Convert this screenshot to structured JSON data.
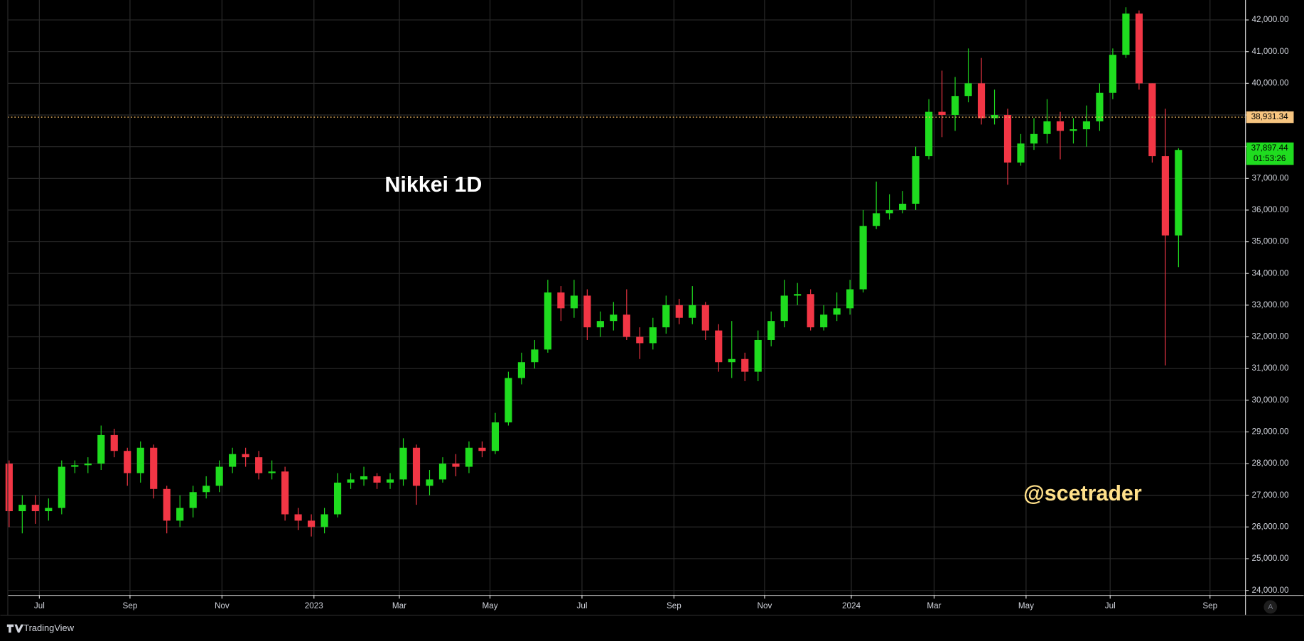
{
  "chart_data": {
    "type": "candlestick",
    "title": "Nikkei 1D",
    "annotation": "@scetrader",
    "up_color": "#1fdc1f",
    "down_color": "#f23645",
    "grid": true,
    "xlim": [
      -0.1,
      94.1
    ],
    "ylim": [
      23843,
      42629
    ],
    "xticks": [
      {
        "value": 2.3,
        "label": "Jul"
      },
      {
        "value": 9.2,
        "label": "Sep"
      },
      {
        "value": 16.2,
        "label": "Nov"
      },
      {
        "value": 23.2,
        "label": "2023"
      },
      {
        "value": 29.7,
        "label": "Mar"
      },
      {
        "value": 36.6,
        "label": "May"
      },
      {
        "value": 43.6,
        "label": "Jul"
      },
      {
        "value": 50.6,
        "label": "Sep"
      },
      {
        "value": 57.5,
        "label": "Nov"
      },
      {
        "value": 64.1,
        "label": "2024"
      },
      {
        "value": 70.4,
        "label": "Mar"
      },
      {
        "value": 77.4,
        "label": "May"
      },
      {
        "value": 83.8,
        "label": "Jul"
      },
      {
        "value": 91.4,
        "label": "Sep"
      }
    ],
    "yticks": [
      {
        "value": 24000,
        "label": "24,000.00"
      },
      {
        "value": 25000,
        "label": "25,000.00"
      },
      {
        "value": 26000,
        "label": "26,000.00"
      },
      {
        "value": 27000,
        "label": "27,000.00"
      },
      {
        "value": 28000,
        "label": "28,000.00"
      },
      {
        "value": 29000,
        "label": "29,000.00"
      },
      {
        "value": 30000,
        "label": "30,000.00"
      },
      {
        "value": 31000,
        "label": "31,000.00"
      },
      {
        "value": 32000,
        "label": "32,000.00"
      },
      {
        "value": 33000,
        "label": "33,000.00"
      },
      {
        "value": 34000,
        "label": "34,000.00"
      },
      {
        "value": 35000,
        "label": "35,000.00"
      },
      {
        "value": 36000,
        "label": "36,000.00"
      },
      {
        "value": 37000,
        "label": "37,000.00"
      },
      {
        "value": 38000,
        "label": "38,000.00"
      },
      {
        "value": 39000,
        "label": "39,000.00"
      },
      {
        "value": 40000,
        "label": "40,000.00"
      },
      {
        "value": 41000,
        "label": "41,000.00"
      },
      {
        "value": 42000,
        "label": "42,000.00"
      }
    ],
    "previous_close": {
      "value": 38931.34,
      "label": "38,931.34"
    },
    "last_price": {
      "value": 37897.44,
      "label": "37,897.44",
      "countdown": "01:53:26"
    },
    "candles": [
      [
        28000,
        28100,
        26000,
        26500
      ],
      [
        26500,
        27000,
        25800,
        26700
      ],
      [
        26700,
        27000,
        26100,
        26500
      ],
      [
        26500,
        26900,
        26200,
        26600
      ],
      [
        26600,
        28100,
        26400,
        27900
      ],
      [
        27900,
        28100,
        27700,
        27950
      ],
      [
        27950,
        28200,
        27700,
        28000
      ],
      [
        28000,
        29200,
        27800,
        28900
      ],
      [
        28900,
        29100,
        28200,
        28400
      ],
      [
        28400,
        28500,
        27300,
        27700
      ],
      [
        27700,
        28700,
        27400,
        28500
      ],
      [
        28500,
        28600,
        26900,
        27200
      ],
      [
        27200,
        27300,
        25800,
        26200
      ],
      [
        26200,
        27000,
        26000,
        26600
      ],
      [
        26600,
        27300,
        26300,
        27100
      ],
      [
        27100,
        27600,
        26900,
        27300
      ],
      [
        27300,
        28100,
        27100,
        27900
      ],
      [
        27900,
        28500,
        27700,
        28300
      ],
      [
        28300,
        28500,
        27900,
        28200
      ],
      [
        28200,
        28400,
        27500,
        27700
      ],
      [
        27700,
        28100,
        27500,
        27750
      ],
      [
        27750,
        27900,
        26200,
        26400
      ],
      [
        26400,
        26600,
        25900,
        26200
      ],
      [
        26200,
        26400,
        25700,
        26000
      ],
      [
        26000,
        26600,
        25800,
        26400
      ],
      [
        26400,
        27700,
        26300,
        27400
      ],
      [
        27400,
        27700,
        27200,
        27500
      ],
      [
        27500,
        27900,
        27300,
        27600
      ],
      [
        27600,
        27700,
        27200,
        27400
      ],
      [
        27400,
        27700,
        27200,
        27500
      ],
      [
        27500,
        28800,
        27300,
        28500
      ],
      [
        28500,
        28600,
        26700,
        27300
      ],
      [
        27300,
        27800,
        27000,
        27500
      ],
      [
        27500,
        28200,
        27400,
        28000
      ],
      [
        28000,
        28300,
        27600,
        27900
      ],
      [
        27900,
        28700,
        27700,
        28500
      ],
      [
        28500,
        28700,
        28200,
        28400
      ],
      [
        28400,
        29600,
        28300,
        29300
      ],
      [
        29300,
        30900,
        29200,
        30700
      ],
      [
        30700,
        31500,
        30500,
        31200
      ],
      [
        31200,
        31900,
        31000,
        31600
      ],
      [
        31600,
        33800,
        31500,
        33400
      ],
      [
        33400,
        33600,
        32500,
        32900
      ],
      [
        32900,
        33800,
        32600,
        33300
      ],
      [
        33300,
        33500,
        31900,
        32300
      ],
      [
        32300,
        32800,
        32000,
        32500
      ],
      [
        32500,
        33100,
        32200,
        32700
      ],
      [
        32700,
        33500,
        31900,
        32000
      ],
      [
        32000,
        32300,
        31300,
        31800
      ],
      [
        31800,
        32600,
        31600,
        32300
      ],
      [
        32300,
        33300,
        32100,
        33000
      ],
      [
        33000,
        33200,
        32400,
        32600
      ],
      [
        32600,
        33600,
        32400,
        33000
      ],
      [
        33000,
        33100,
        31900,
        32200
      ],
      [
        32200,
        32400,
        30900,
        31200
      ],
      [
        31200,
        32500,
        30700,
        31300
      ],
      [
        31300,
        31500,
        30600,
        30900
      ],
      [
        30900,
        32200,
        30600,
        31900
      ],
      [
        31900,
        32800,
        31700,
        32500
      ],
      [
        32500,
        33800,
        32300,
        33300
      ],
      [
        33300,
        33700,
        33000,
        33350
      ],
      [
        33350,
        33500,
        32200,
        32300
      ],
      [
        32300,
        33000,
        32200,
        32700
      ],
      [
        32700,
        33400,
        32500,
        32900
      ],
      [
        32900,
        33800,
        32700,
        33500
      ],
      [
        33500,
        36000,
        33400,
        35500
      ],
      [
        35500,
        36900,
        35400,
        35900
      ],
      [
        35900,
        36500,
        35700,
        36000
      ],
      [
        36000,
        36600,
        35900,
        36200
      ],
      [
        36200,
        38000,
        36000,
        37700
      ],
      [
        37700,
        39500,
        37600,
        39100
      ],
      [
        39100,
        40400,
        38300,
        39000
      ],
      [
        39000,
        40200,
        38500,
        39600
      ],
      [
        39600,
        41100,
        39400,
        40000
      ],
      [
        40000,
        40800,
        38700,
        38900
      ],
      [
        38900,
        39800,
        38700,
        39000
      ],
      [
        39000,
        39200,
        36800,
        37500
      ],
      [
        37500,
        38400,
        37400,
        38100
      ],
      [
        38100,
        38900,
        37900,
        38400
      ],
      [
        38400,
        39500,
        38100,
        38800
      ],
      [
        38800,
        39100,
        37600,
        38500
      ],
      [
        38500,
        38900,
        38100,
        38550
      ],
      [
        38550,
        39300,
        38000,
        38800
      ],
      [
        38800,
        40000,
        38500,
        39700
      ],
      [
        39700,
        41100,
        39500,
        40900
      ],
      [
        40900,
        42400,
        40800,
        42200
      ],
      [
        42200,
        42300,
        39800,
        40000
      ],
      [
        40000,
        40000,
        37500,
        37700
      ],
      [
        37700,
        39200,
        31100,
        35200
      ],
      [
        35200,
        37950,
        34200,
        37897.44
      ]
    ]
  },
  "footer": {
    "brand": "TradingView",
    "auto_button": "A"
  }
}
